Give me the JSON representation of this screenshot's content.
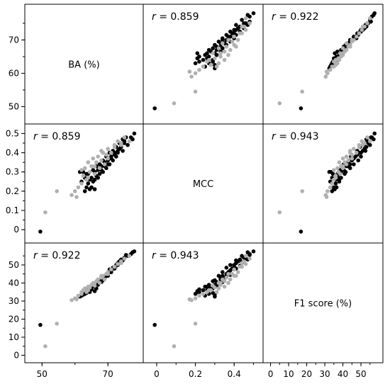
{
  "chart_data": {
    "type": "scatter",
    "variables": [
      {
        "label": "BA (%)",
        "ticks": [
          50,
          60,
          70
        ],
        "tick_labels": [
          "50",
          "60",
          "70"
        ],
        "range": [
          46.5,
          79
        ]
      },
      {
        "label": "MCC",
        "ticks": [
          0,
          0.1,
          0.2,
          0.3,
          0.4,
          0.5
        ],
        "tick_labels": [
          "0",
          "0.1",
          "0.2",
          "0.3",
          "0.4",
          "0.5"
        ],
        "range": [
          -0.04,
          0.52
        ]
      },
      {
        "label": "F1 score (%)",
        "ticks": [
          0,
          10,
          20,
          30,
          40,
          50
        ],
        "tick_labels": [
          "0",
          "10",
          "20",
          "30",
          "40",
          "50"
        ],
        "range": [
          -1,
          59
        ]
      }
    ],
    "x_axis_ticks": [
      {
        "ticks": [
          50,
          70
        ],
        "tick_labels": [
          "50",
          "70"
        ]
      },
      {
        "ticks": [
          0,
          0.2,
          0.4
        ],
        "tick_labels": [
          "0",
          "0.2",
          "0.4"
        ]
      },
      {
        "ticks": [
          0,
          10,
          20,
          30,
          40,
          50
        ],
        "tick_labels": [
          "0",
          "10",
          "20",
          "30",
          "40",
          "50"
        ]
      }
    ],
    "correlations": [
      {
        "row": 0,
        "col": 1,
        "text": "0.859"
      },
      {
        "row": 0,
        "col": 2,
        "text": "0.922"
      },
      {
        "row": 1,
        "col": 0,
        "text": "0.859"
      },
      {
        "row": 1,
        "col": 2,
        "text": "0.943"
      },
      {
        "row": 2,
        "col": 0,
        "text": "0.922"
      },
      {
        "row": 2,
        "col": 1,
        "text": "0.943"
      }
    ],
    "r_symbol": "r",
    "r_equals": " = ",
    "series": [
      {
        "color": "#000000",
        "points": [
          [
            49.5,
            -0.01,
            16.8
          ],
          [
            62.5,
            0.3,
            33.5
          ],
          [
            63.0,
            0.2,
            34.0
          ],
          [
            63.5,
            0.22,
            35.0
          ],
          [
            64.0,
            0.24,
            36.0
          ],
          [
            64.5,
            0.21,
            35.0
          ],
          [
            65.0,
            0.27,
            37.5
          ],
          [
            65.5,
            0.25,
            38.0
          ],
          [
            66.0,
            0.3,
            39.0
          ],
          [
            66.5,
            0.28,
            37.0
          ],
          [
            67.0,
            0.31,
            40.0
          ],
          [
            67.5,
            0.29,
            41.0
          ],
          [
            68.0,
            0.33,
            42.0
          ],
          [
            68.5,
            0.3,
            41.5
          ],
          [
            69.0,
            0.35,
            43.0
          ],
          [
            69.5,
            0.32,
            44.0
          ],
          [
            70.0,
            0.36,
            45.0
          ],
          [
            70.5,
            0.34,
            46.0
          ],
          [
            71.0,
            0.38,
            47.0
          ],
          [
            71.5,
            0.36,
            48.5
          ],
          [
            72.0,
            0.4,
            49.0
          ],
          [
            72.5,
            0.38,
            50.0
          ],
          [
            73.0,
            0.41,
            51.0
          ],
          [
            73.5,
            0.42,
            52.0
          ],
          [
            74.0,
            0.43,
            53.0
          ],
          [
            74.5,
            0.41,
            52.5
          ],
          [
            75.0,
            0.45,
            54.0
          ],
          [
            76.0,
            0.44,
            55.0
          ],
          [
            77.0,
            0.48,
            56.0
          ],
          [
            78.0,
            0.5,
            57.5
          ],
          [
            63.0,
            0.27,
            34.0
          ],
          [
            64.0,
            0.29,
            37.0
          ],
          [
            65.0,
            0.22,
            36.5
          ],
          [
            66.0,
            0.26,
            38.0
          ],
          [
            67.0,
            0.27,
            39.0
          ],
          [
            68.0,
            0.31,
            40.5
          ],
          [
            69.0,
            0.33,
            42.5
          ],
          [
            70.0,
            0.34,
            44.0
          ],
          [
            71.0,
            0.37,
            46.0
          ],
          [
            72.0,
            0.39,
            48.0
          ],
          [
            73.0,
            0.4,
            50.0
          ],
          [
            74.0,
            0.44,
            51.5
          ],
          [
            75.0,
            0.46,
            53.5
          ],
          [
            62.0,
            0.25,
            33.0
          ],
          [
            64.5,
            0.26,
            36.0
          ],
          [
            66.5,
            0.33,
            39.5
          ],
          [
            68.5,
            0.36,
            43.5
          ],
          [
            70.5,
            0.4,
            47.5
          ],
          [
            72.5,
            0.43,
            49.5
          ],
          [
            74.5,
            0.47,
            53.0
          ],
          [
            61.5,
            0.3,
            32.5
          ],
          [
            63.5,
            0.29,
            34.5
          ],
          [
            65.5,
            0.31,
            38.5
          ],
          [
            67.5,
            0.34,
            40.5
          ],
          [
            69.5,
            0.38,
            44.5
          ],
          [
            71.5,
            0.41,
            48.0
          ],
          [
            73.5,
            0.45,
            51.5
          ],
          [
            75.5,
            0.48,
            55.5
          ],
          [
            77.5,
            0.47,
            57.0
          ],
          [
            66.0,
            0.21,
            35.5
          ]
        ]
      },
      {
        "color": "#b0b0b0",
        "points": [
          [
            51.0,
            0.09,
            5.0
          ],
          [
            54.5,
            0.2,
            17.5
          ],
          [
            59.0,
            0.18,
            30.5
          ],
          [
            60.0,
            0.2,
            31.5
          ],
          [
            61.0,
            0.22,
            33.0
          ],
          [
            62.0,
            0.24,
            34.0
          ],
          [
            62.5,
            0.28,
            36.0
          ],
          [
            63.0,
            0.32,
            37.0
          ],
          [
            63.5,
            0.26,
            35.0
          ],
          [
            64.0,
            0.35,
            38.0
          ],
          [
            64.5,
            0.3,
            37.5
          ],
          [
            65.0,
            0.33,
            39.0
          ],
          [
            65.5,
            0.37,
            40.0
          ],
          [
            66.0,
            0.29,
            38.5
          ],
          [
            66.5,
            0.35,
            41.0
          ],
          [
            67.0,
            0.38,
            42.0
          ],
          [
            67.5,
            0.32,
            40.0
          ],
          [
            68.0,
            0.36,
            43.0
          ],
          [
            68.5,
            0.4,
            44.0
          ],
          [
            69.0,
            0.34,
            42.0
          ],
          [
            69.5,
            0.39,
            45.0
          ],
          [
            70.0,
            0.42,
            46.0
          ],
          [
            71.0,
            0.4,
            47.5
          ],
          [
            72.0,
            0.44,
            49.0
          ],
          [
            73.0,
            0.46,
            50.5
          ],
          [
            74.0,
            0.45,
            52.0
          ],
          [
            75.0,
            0.48,
            53.5
          ],
          [
            76.5,
            0.46,
            55.0
          ],
          [
            62.0,
            0.31,
            35.0
          ],
          [
            64.0,
            0.27,
            36.0
          ],
          [
            66.0,
            0.33,
            40.0
          ],
          [
            68.0,
            0.41,
            44.0
          ],
          [
            70.0,
            0.37,
            45.0
          ],
          [
            72.0,
            0.43,
            49.0
          ],
          [
            74.0,
            0.44,
            51.0
          ],
          [
            60.5,
            0.17,
            31.0
          ]
        ]
      }
    ]
  }
}
